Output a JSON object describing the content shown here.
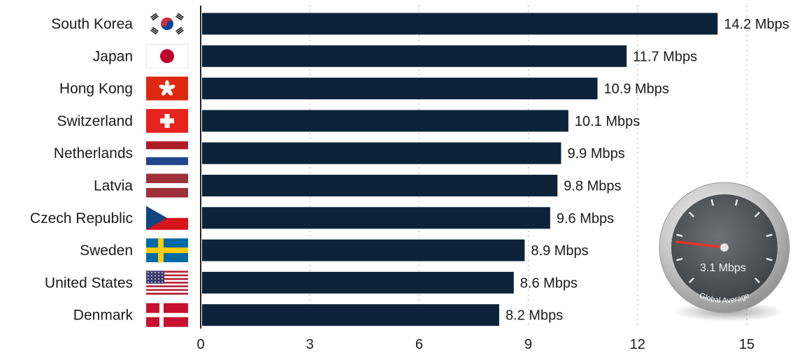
{
  "chart_data": {
    "type": "bar",
    "orientation": "horizontal",
    "categories": [
      "South Korea",
      "Japan",
      "Hong Kong",
      "Switzerland",
      "Netherlands",
      "Latvia",
      "Czech Republic",
      "Sweden",
      "United States",
      "Denmark"
    ],
    "values": [
      14.2,
      11.7,
      10.9,
      10.1,
      9.9,
      9.8,
      9.6,
      8.9,
      8.6,
      8.2
    ],
    "value_labels": [
      "14.2 Mbps",
      "11.7 Mbps",
      "10.9 Mbps",
      "10.1 Mbps",
      "9.9 Mbps",
      "9.8 Mbps",
      "9.6 Mbps",
      "8.9 Mbps",
      "8.6 Mbps",
      "8.2 Mbps"
    ],
    "flags": [
      "south-korea-flag-icon",
      "japan-flag-icon",
      "hong-kong-flag-icon",
      "switzerland-flag-icon",
      "netherlands-flag-icon",
      "latvia-flag-icon",
      "czech-republic-flag-icon",
      "sweden-flag-icon",
      "united-states-flag-icon",
      "denmark-flag-icon"
    ],
    "xlim": [
      0,
      15
    ],
    "xticks": [
      0,
      3,
      6,
      9,
      12,
      15
    ],
    "grid": true,
    "bar_color": "#0d2339"
  },
  "gauge": {
    "value_label": "3.1 Mbps",
    "caption": "Global Average",
    "icon": "speedometer-icon"
  }
}
